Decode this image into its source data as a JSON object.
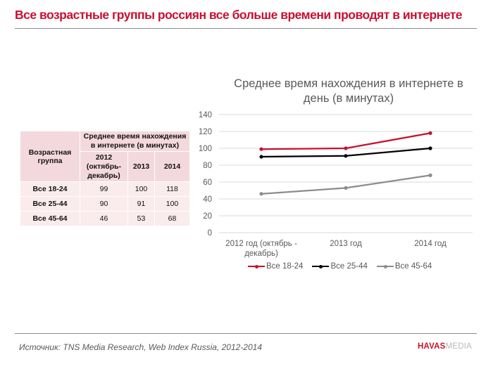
{
  "header": {
    "title": "Все возрастные группы россиян все больше времени проводят в интернете"
  },
  "table": {
    "col_group_label": "Возрастная группа",
    "span_header": "Среднее время нахождения в интернете (в минутах)",
    "year_headers": [
      "2012 (октябрь-декабрь)",
      "2013",
      "2014"
    ],
    "rows": [
      {
        "label": "Все 18-24",
        "values": [
          "99",
          "100",
          "118"
        ]
      },
      {
        "label": "Все 25-44",
        "values": [
          "90",
          "91",
          "100"
        ]
      },
      {
        "label": "Все 45-64",
        "values": [
          "46",
          "53",
          "68"
        ]
      }
    ]
  },
  "chart_data": {
    "type": "line",
    "title": "Среднее время нахождения в интернете в день (в минутах)",
    "categories": [
      "2012 год (октябрь - декабрь)",
      "2013 год",
      "2014 год"
    ],
    "category_lines": [
      [
        "2012 год (октябрь -",
        "декабрь)"
      ],
      [
        "2013 год"
      ],
      [
        "2014 год"
      ]
    ],
    "ylim": [
      0,
      140
    ],
    "yticks": [
      0,
      20,
      40,
      60,
      80,
      100,
      120,
      140
    ],
    "grid": true,
    "legend_position": "bottom",
    "series": [
      {
        "name": "Все 18-24",
        "values": [
          99,
          100,
          118
        ],
        "color": "#c8102e"
      },
      {
        "name": "Все 25-44",
        "values": [
          90,
          91,
          100
        ],
        "color": "#000000"
      },
      {
        "name": "Все 45-64",
        "values": [
          46,
          53,
          68
        ],
        "color": "#8c8c8c"
      }
    ]
  },
  "footer": {
    "source": "Источник: TNS Media Research, Web Index Russia, 2012-2014",
    "logo_primary": "HAVAS",
    "logo_secondary": "MEDIA"
  }
}
